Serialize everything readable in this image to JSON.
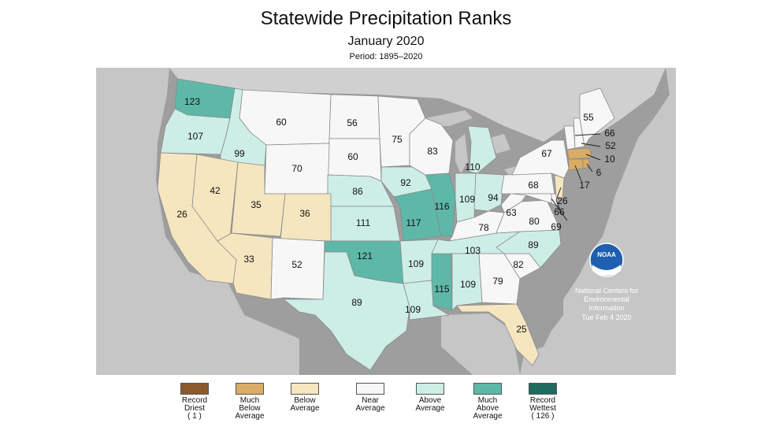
{
  "title": "Statewide Precipitation Ranks",
  "subtitle": "January 2020",
  "period": "Period: 1895–2020",
  "colors": {
    "record_driest": "#8c5a2a",
    "much_below": "#d9ad66",
    "below": "#f5e6bf",
    "near": "#f7f7f7",
    "above": "#cdeee6",
    "much_above": "#5db8a8",
    "record_wettest": "#1f6b5e",
    "background_land": "#9e9e9e",
    "water": "#c6c6c6"
  },
  "legend": [
    {
      "label": "Record\nDriest\n( 1 )",
      "color": "#8c5a2a"
    },
    {
      "label": "Much\nBelow\nAverage",
      "color": "#d9ad66"
    },
    {
      "label": "Below\nAverage",
      "color": "#f5e6bf"
    },
    {
      "label": "Near\nAverage",
      "color": "#f7f7f7"
    },
    {
      "label": "Above\nAverage",
      "color": "#cdeee6"
    },
    {
      "label": "Much\nAbove\nAverage",
      "color": "#5db8a8"
    },
    {
      "label": "Record\nWettest\n( 126 )",
      "color": "#1f6b5e"
    }
  ],
  "states": {
    "WA": {
      "rank": "123",
      "category": "much_above"
    },
    "OR": {
      "rank": "107",
      "category": "above"
    },
    "ID": {
      "rank": "99",
      "category": "above"
    },
    "MT": {
      "rank": "60",
      "category": "near"
    },
    "ND": {
      "rank": "56",
      "category": "near"
    },
    "SD": {
      "rank": "60",
      "category": "near"
    },
    "WY": {
      "rank": "70",
      "category": "near"
    },
    "NE": {
      "rank": "86",
      "category": "above"
    },
    "KS": {
      "rank": "111",
      "category": "above"
    },
    "CA": {
      "rank": "26",
      "category": "below"
    },
    "NV": {
      "rank": "42",
      "category": "below"
    },
    "UT": {
      "rank": "35",
      "category": "below"
    },
    "CO": {
      "rank": "36",
      "category": "below"
    },
    "AZ": {
      "rank": "33",
      "category": "below"
    },
    "NM": {
      "rank": "52",
      "category": "near"
    },
    "OK": {
      "rank": "121",
      "category": "much_above"
    },
    "TX": {
      "rank": "89",
      "category": "above"
    },
    "MN": {
      "rank": "75",
      "category": "near"
    },
    "IA": {
      "rank": "92",
      "category": "above"
    },
    "MO": {
      "rank": "117",
      "category": "much_above"
    },
    "AR": {
      "rank": "109",
      "category": "above"
    },
    "LA": {
      "rank": "109",
      "category": "above"
    },
    "WI": {
      "rank": "83",
      "category": "near"
    },
    "IL": {
      "rank": "116",
      "category": "much_above"
    },
    "MS": {
      "rank": "115",
      "category": "much_above"
    },
    "MI": {
      "rank": "110",
      "category": "above"
    },
    "IN": {
      "rank": "109",
      "category": "above"
    },
    "OH": {
      "rank": "94",
      "category": "above"
    },
    "KY": {
      "rank": "78",
      "category": "near"
    },
    "TN": {
      "rank": "103",
      "category": "above"
    },
    "AL": {
      "rank": "109",
      "category": "above"
    },
    "GA": {
      "rank": "79",
      "category": "near"
    },
    "FL": {
      "rank": "25",
      "category": "below"
    },
    "SC": {
      "rank": "82",
      "category": "near"
    },
    "NC": {
      "rank": "89",
      "category": "above"
    },
    "VA": {
      "rank": "80",
      "category": "near"
    },
    "WV": {
      "rank": "63",
      "category": "near"
    },
    "PA": {
      "rank": "68",
      "category": "near"
    },
    "NY": {
      "rank": "67",
      "category": "near"
    },
    "ME": {
      "rank": "55",
      "category": "near"
    },
    "VT": {
      "rank": "66",
      "category": "near"
    },
    "NH": {
      "rank": "52",
      "category": "near"
    },
    "MA": {
      "rank": "10",
      "category": "much_below"
    },
    "RI": {
      "rank": "6",
      "category": "much_below"
    },
    "CT": {
      "rank": "17",
      "category": "much_below"
    },
    "NJ": {
      "rank": "26",
      "category": "below"
    },
    "DE": {
      "rank": "66",
      "category": "near"
    },
    "MD": {
      "rank": "69",
      "category": "near"
    }
  },
  "noaa": {
    "logo_text": "NOAA",
    "line1": "National Centers for",
    "line2": "Environmental",
    "line3": "Information",
    "date": "Tue Feb  4 2020"
  }
}
